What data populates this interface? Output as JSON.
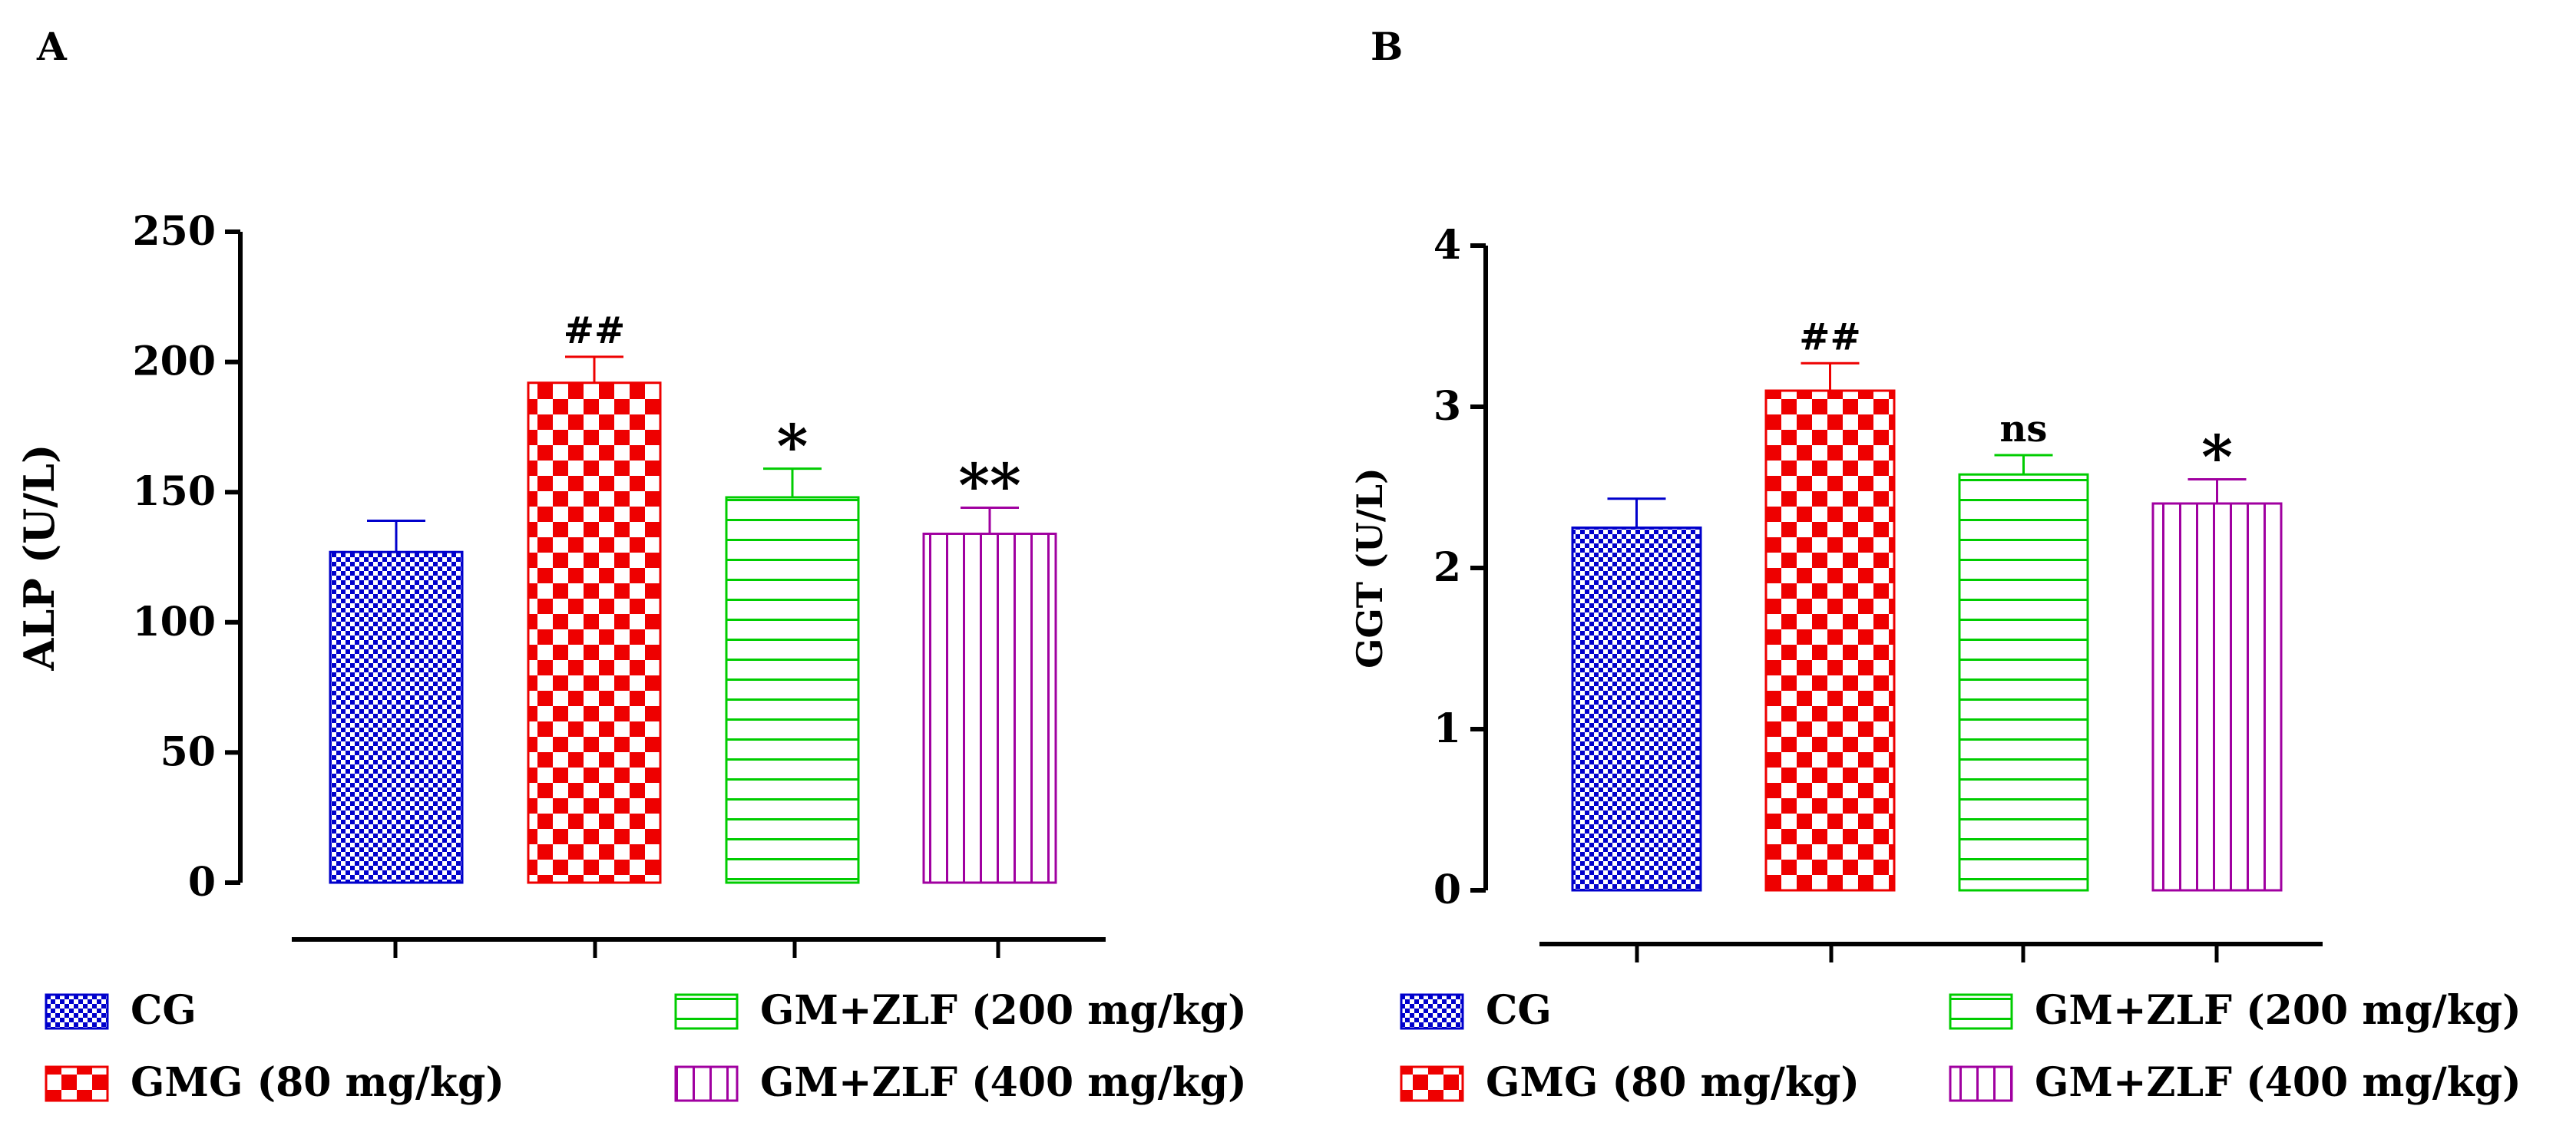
{
  "colors": {
    "CG": "#0000cc",
    "GMG": "#ee0000",
    "ZLF200": "#00cc00",
    "ZLF400": "#a000a0",
    "axis": "#000000"
  },
  "legend": [
    {
      "key": "CG",
      "label": "CG",
      "pattern": "checker-small"
    },
    {
      "key": "GMG",
      "label": "GMG (80 mg/kg)",
      "pattern": "checker-large"
    },
    {
      "key": "ZLF200",
      "label": "GM+ZLF (200 mg/kg)",
      "pattern": "hlines"
    },
    {
      "key": "ZLF400",
      "label": "GM+ZLF (400 mg/kg)",
      "pattern": "vlines"
    }
  ],
  "chart_data": [
    {
      "panel_label": "A",
      "type": "bar",
      "title": "",
      "xlabel": "",
      "ylabel": "ALP (U/L)",
      "ylim": [
        0,
        250
      ],
      "yticks": [
        0,
        50,
        100,
        150,
        200,
        250
      ],
      "categories": [
        "CG",
        "GMG (80 mg/kg)",
        "GM+ZLF (200 mg/kg)",
        "GM+ZLF (400 mg/kg)"
      ],
      "values": [
        127,
        192,
        148,
        134
      ],
      "errors": [
        12,
        10,
        11,
        10
      ],
      "annotations": [
        "",
        "##",
        "*",
        "**"
      ]
    },
    {
      "panel_label": "B",
      "type": "bar",
      "title": "",
      "xlabel": "",
      "ylabel": "GGT (U/L)",
      "ylim": [
        0,
        4
      ],
      "yticks": [
        0,
        1,
        2,
        3,
        4
      ],
      "categories": [
        "CG",
        "GMG (80 mg/kg)",
        "GM+ZLF (200 mg/kg)",
        "GM+ZLF (400 mg/kg)"
      ],
      "values": [
        2.25,
        3.1,
        2.58,
        2.4
      ],
      "errors": [
        0.18,
        0.17,
        0.12,
        0.15
      ],
      "annotations": [
        "",
        "##",
        "ns",
        "*"
      ]
    }
  ]
}
